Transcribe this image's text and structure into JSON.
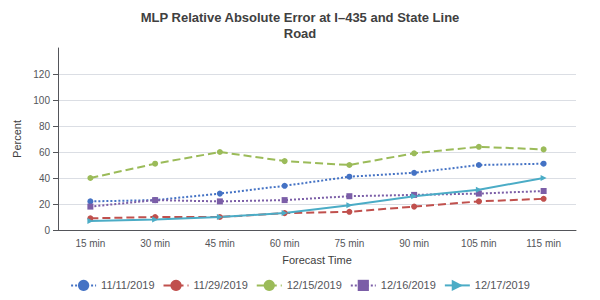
{
  "chart_data": {
    "type": "line",
    "title": "MLP Relative Absolute Error at I–435 and State Line\nRoad",
    "xlabel": "Forecast Time",
    "ylabel": "Percent",
    "categories": [
      "15 min",
      "30 min",
      "45 min",
      "60 min",
      "75 min",
      "90 min",
      "105 min",
      "115 min"
    ],
    "series": [
      {
        "name": "11/11/2019",
        "color": "#4472C4",
        "line_style": "dotted",
        "marker": "circle",
        "values": [
          22,
          23,
          28,
          34,
          41,
          44,
          50,
          51
        ]
      },
      {
        "name": "11/29/2019",
        "color": "#C0504D",
        "line_style": "dashed",
        "marker": "circle",
        "values": [
          9,
          10,
          10,
          13,
          14,
          18,
          22,
          24
        ]
      },
      {
        "name": "12/15/2019",
        "color": "#9BBB59",
        "line_style": "dashed",
        "marker": "circle",
        "values": [
          40,
          51,
          60,
          53,
          50,
          59,
          64,
          62
        ]
      },
      {
        "name": "12/16/2019",
        "color": "#7B5EA7",
        "line_style": "dotted",
        "marker": "square",
        "values": [
          18,
          23,
          22,
          23,
          26,
          27,
          28,
          30
        ]
      },
      {
        "name": "12/17/2019",
        "color": "#4BACC6",
        "line_style": "solid",
        "marker": "triangle-right",
        "values": [
          7,
          8,
          10,
          13,
          19,
          26,
          31,
          40
        ]
      }
    ],
    "ylim": [
      0,
      140
    ],
    "yticks": [
      0,
      20,
      40,
      60,
      80,
      100,
      120
    ],
    "grid": true,
    "legend": "bottom"
  }
}
